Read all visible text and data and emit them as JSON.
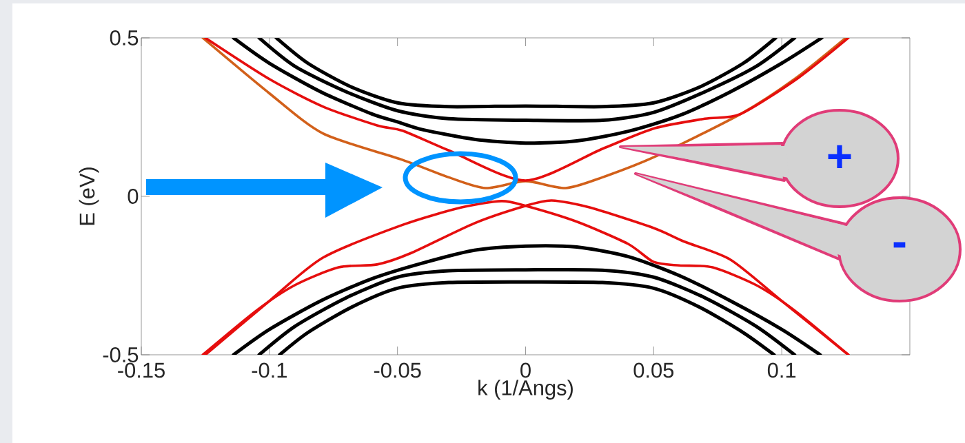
{
  "chart_data": {
    "type": "line",
    "xlabel": "k (1/Angs)",
    "ylabel": "E (eV)",
    "xlim": [
      -0.15,
      0.15
    ],
    "ylim": [
      -0.5,
      0.5
    ],
    "xticks": [
      -0.15,
      -0.1,
      -0.05,
      0,
      0.05,
      0.1
    ],
    "yticks": [
      -0.5,
      0,
      0.5
    ],
    "marker": "none",
    "line_style": "solid",
    "series": [
      {
        "color": "#000000",
        "x": [
          -0.0973,
          -0.085,
          -0.068,
          -0.05,
          -0.03,
          0,
          0.03,
          0.05,
          0.068,
          0.085,
          0.0976
        ],
        "values": [
          0.5,
          0.42,
          0.345,
          0.295,
          0.283,
          0.285,
          0.283,
          0.295,
          0.345,
          0.42,
          0.5
        ]
      },
      {
        "color": "#000000",
        "x": [
          -0.104,
          -0.09,
          -0.07,
          -0.05,
          -0.03,
          0,
          0.03,
          0.05,
          0.07,
          0.09,
          0.105
        ],
        "values": [
          0.5,
          0.41,
          0.33,
          0.27,
          0.245,
          0.24,
          0.24,
          0.265,
          0.33,
          0.41,
          0.5
        ]
      },
      {
        "color": "#000000",
        "x": [
          -0.114,
          -0.1,
          -0.08,
          -0.06,
          -0.05,
          -0.04,
          -0.02,
          0,
          0.02,
          0.04,
          0.06,
          0.08,
          0.1,
          0.1156
        ],
        "values": [
          0.5,
          0.42,
          0.33,
          0.26,
          0.235,
          0.21,
          0.18,
          0.168,
          0.175,
          0.205,
          0.255,
          0.33,
          0.42,
          0.5
        ]
      },
      {
        "color": "#000000",
        "x": [
          -0.114,
          -0.1,
          -0.08,
          -0.06,
          -0.04,
          -0.02,
          0,
          0.02,
          0.04,
          0.06,
          0.08,
          0.1,
          0.115
        ],
        "values": [
          -0.5,
          -0.42,
          -0.33,
          -0.26,
          -0.21,
          -0.17,
          -0.157,
          -0.16,
          -0.19,
          -0.25,
          -0.33,
          -0.42,
          -0.5
        ]
      },
      {
        "color": "#000000",
        "x": [
          -0.104,
          -0.09,
          -0.07,
          -0.05,
          -0.03,
          0,
          0.03,
          0.05,
          0.07,
          0.09,
          0.105
        ],
        "values": [
          -0.5,
          -0.41,
          -0.32,
          -0.255,
          -0.235,
          -0.232,
          -0.233,
          -0.255,
          -0.32,
          -0.41,
          -0.5
        ]
      },
      {
        "color": "#000000",
        "x": [
          -0.096,
          -0.085,
          -0.068,
          -0.05,
          -0.03,
          0,
          0.03,
          0.05,
          0.068,
          0.085,
          0.097
        ],
        "values": [
          -0.5,
          -0.43,
          -0.35,
          -0.29,
          -0.272,
          -0.27,
          -0.272,
          -0.29,
          -0.35,
          -0.43,
          -0.5
        ]
      },
      {
        "color": "#d2601a",
        "x": [
          -0.126,
          -0.1,
          -0.079,
          -0.048,
          -0.03,
          -0.0156,
          0,
          0.0156,
          0.03,
          0.0505,
          0.084,
          0.105,
          0.125
        ],
        "values": [
          0.5,
          0.325,
          0.198,
          0.115,
          0.06,
          0.026,
          0.048,
          0.026,
          0.06,
          0.125,
          0.26,
          0.37,
          0.5
        ]
      },
      {
        "color": "#e60e0e",
        "x": [
          -0.125,
          -0.1,
          -0.079,
          -0.058,
          -0.048,
          -0.03,
          0,
          0.03,
          0.0505,
          0.07,
          0.084,
          0.1065,
          0.126
        ],
        "values": [
          0.5,
          0.37,
          0.283,
          0.224,
          0.207,
          0.145,
          0.05,
          0.15,
          0.215,
          0.245,
          0.26,
          0.374,
          0.5
        ]
      },
      {
        "color": "#e60e0e",
        "x": [
          -0.125,
          -0.1,
          -0.079,
          -0.048,
          -0.025,
          -0.0094,
          0,
          0.02,
          0.04,
          0.05,
          0.06,
          0.073,
          0.09,
          0.105,
          0.126
        ],
        "values": [
          -0.5,
          -0.33,
          -0.193,
          -0.09,
          -0.035,
          -0.015,
          -0.03,
          -0.08,
          -0.15,
          -0.207,
          -0.218,
          -0.224,
          -0.28,
          -0.36,
          -0.5
        ]
      },
      {
        "color": "#e60e0e",
        "x": [
          -0.126,
          -0.105,
          -0.09,
          -0.073,
          -0.058,
          -0.045,
          -0.02,
          0,
          0.0102,
          0.025,
          0.05,
          0.062,
          0.08,
          0.1,
          0.126
        ],
        "values": [
          -0.5,
          -0.36,
          -0.28,
          -0.224,
          -0.215,
          -0.18,
          -0.085,
          -0.03,
          -0.013,
          -0.035,
          -0.1,
          -0.143,
          -0.2,
          -0.33,
          -0.5
        ]
      }
    ],
    "annotations": [
      "+",
      "-"
    ]
  }
}
